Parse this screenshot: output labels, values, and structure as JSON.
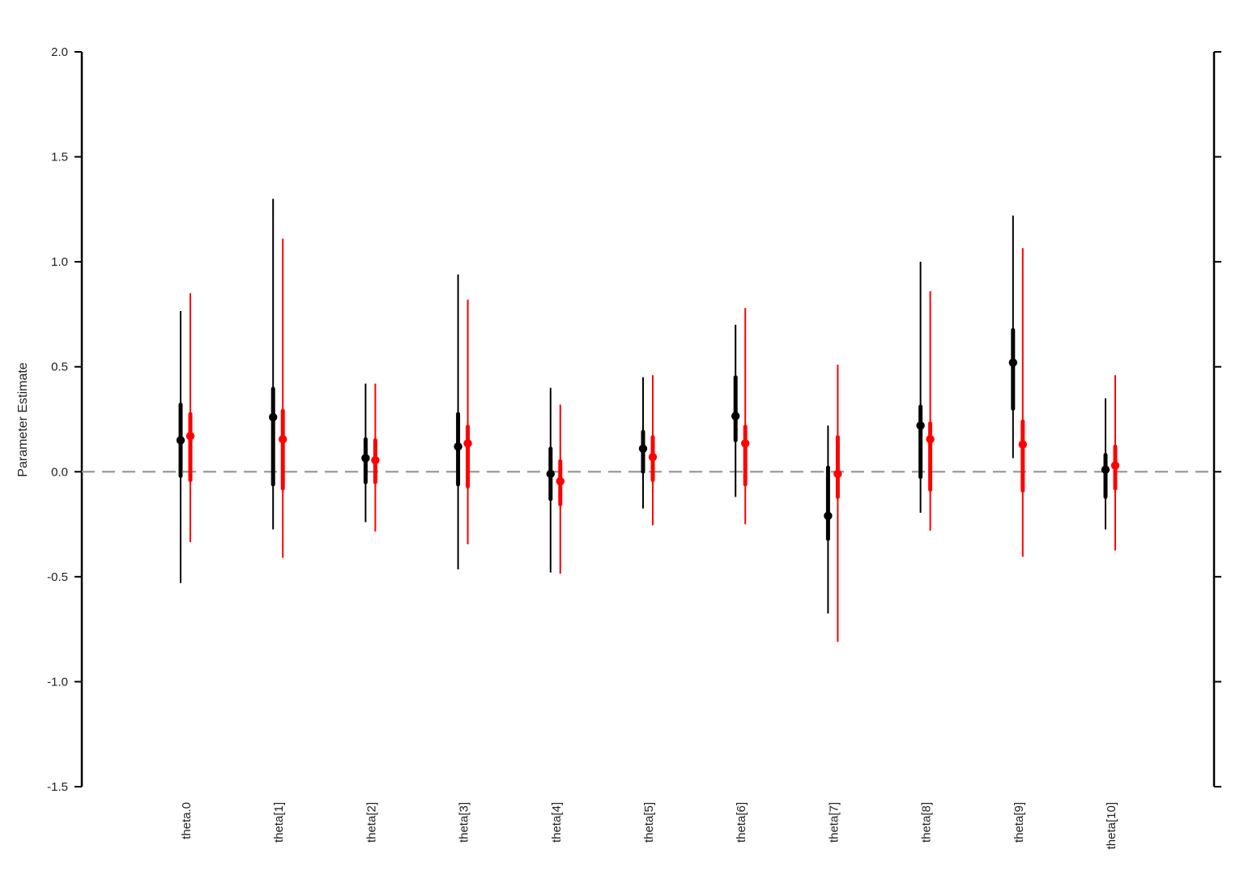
{
  "chart_data": {
    "type": "scatter",
    "title": "",
    "xlabel": "",
    "ylabel": "Parameter Estimate",
    "ylim": [
      -1.5,
      2.0
    ],
    "yticks": [
      "-1.5",
      "-1.0",
      "-0.5",
      "0.0",
      "0.5",
      "1.0",
      "1.5",
      "2.0"
    ],
    "ytick_values": [
      -1.5,
      -1.0,
      -0.5,
      0.0,
      0.5,
      1.0,
      1.5,
      2.0
    ],
    "categories": [
      "theta.0",
      "theta[1]",
      "theta[2]",
      "theta[3]",
      "theta[4]",
      "theta[5]",
      "theta[6]",
      "theta[7]",
      "theta[8]",
      "theta[9]",
      "theta[10]"
    ],
    "reference_line": {
      "y": 0.0,
      "style": "dashed",
      "color": "#999999"
    },
    "legend": "none",
    "grid": false,
    "series": [
      {
        "color": "#000000",
        "estimate": [
          0.15,
          0.26,
          0.065,
          0.12,
          -0.01,
          0.11,
          0.265,
          -0.21,
          0.22,
          0.52,
          0.01
        ],
        "inner_low": [
          -0.02,
          -0.06,
          -0.05,
          -0.06,
          -0.13,
          0.0,
          0.15,
          -0.32,
          -0.025,
          0.3,
          -0.12
        ],
        "inner_high": [
          0.32,
          0.395,
          0.155,
          0.275,
          0.11,
          0.19,
          0.45,
          0.02,
          0.31,
          0.675,
          0.08
        ],
        "outer_low": [
          -0.53,
          -0.275,
          -0.24,
          -0.465,
          -0.48,
          -0.175,
          -0.12,
          -0.675,
          -0.195,
          0.065,
          -0.275
        ],
        "outer_high": [
          0.765,
          1.3,
          0.42,
          0.94,
          0.4,
          0.45,
          0.7,
          0.22,
          1.0,
          1.22,
          0.35
        ]
      },
      {
        "color": "#ff0000",
        "estimate": [
          0.17,
          0.155,
          0.055,
          0.135,
          -0.045,
          0.07,
          0.135,
          -0.01,
          0.155,
          0.13,
          0.03
        ],
        "inner_low": [
          -0.04,
          -0.08,
          -0.05,
          -0.07,
          -0.155,
          -0.04,
          -0.06,
          -0.12,
          -0.085,
          -0.09,
          -0.08
        ],
        "inner_high": [
          0.275,
          0.29,
          0.15,
          0.215,
          0.05,
          0.165,
          0.215,
          0.165,
          0.23,
          0.24,
          0.12
        ],
        "outer_low": [
          -0.335,
          -0.41,
          -0.285,
          -0.345,
          -0.485,
          -0.255,
          -0.25,
          -0.81,
          -0.28,
          -0.405,
          -0.375
        ],
        "outer_high": [
          0.85,
          1.11,
          0.42,
          0.82,
          0.32,
          0.46,
          0.78,
          0.51,
          0.86,
          1.065,
          0.46
        ]
      }
    ]
  }
}
